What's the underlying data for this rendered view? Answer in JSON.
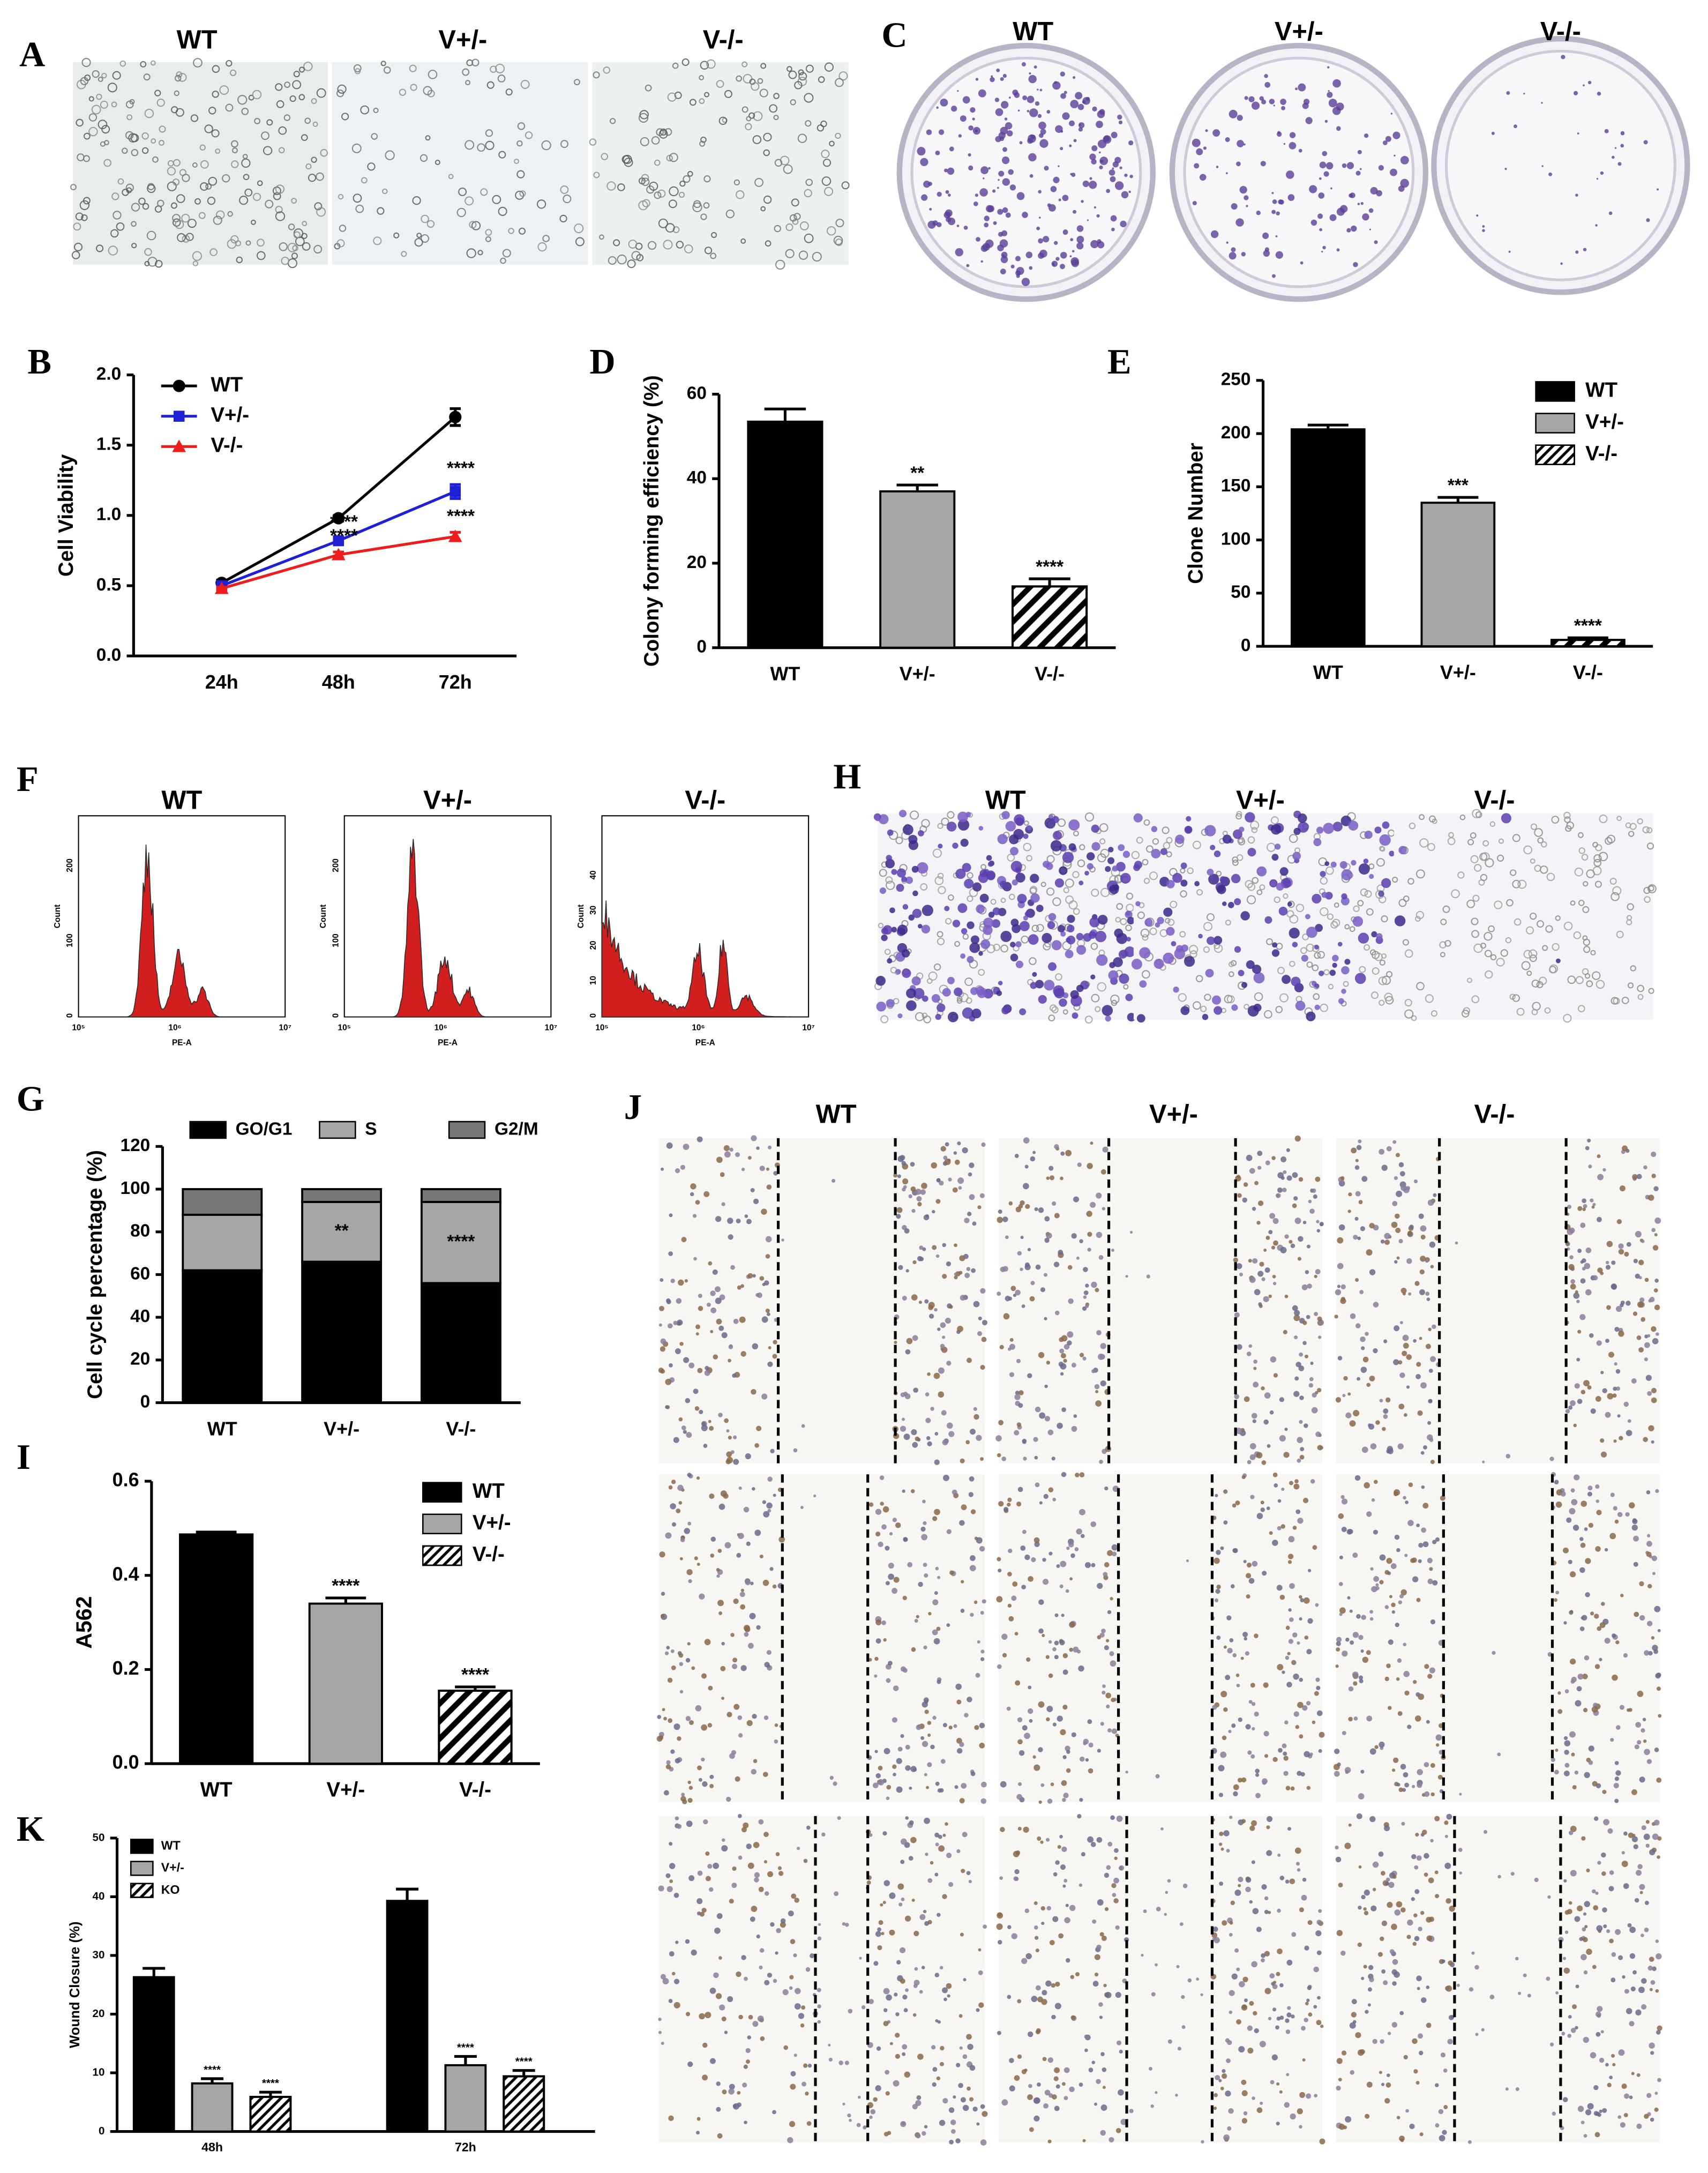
{
  "image_panels": [
    {
      "panel_label": "A",
      "labels": [
        "WT",
        "V+/-",
        "V-/-"
      ]
    },
    {
      "panel_label": "C",
      "labels": [
        "WT",
        "V+/-",
        "V-/-"
      ]
    },
    {
      "panel_label": "F",
      "labels": [
        "WT",
        "V+/-",
        "V-/-"
      ],
      "y_axis_label": "Count",
      "x_axis_label": "PE-A",
      "x_ticks": [
        "10⁵",
        "10⁶",
        "10⁷"
      ],
      "y_ticks": [
        [
          "0",
          "100",
          "200"
        ],
        [
          "0",
          "100",
          "200"
        ],
        [
          "0",
          "10",
          "20",
          "30",
          "40"
        ]
      ]
    },
    {
      "panel_label": "H",
      "labels": [
        "WT",
        "V+/-",
        "V-/-"
      ]
    },
    {
      "panel_label": "J",
      "labels": [
        "WT",
        "V+/-",
        "V-/-"
      ]
    }
  ],
  "chart_data": [
    {
      "type": "line",
      "panel_label": "B",
      "y_label": "Cell Viability",
      "categories": [
        "24h",
        "48h",
        "72h"
      ],
      "ylim": [
        0,
        2
      ],
      "yticks": [
        {
          "value": 0,
          "label": "0.0"
        },
        0.5,
        {
          "value": 1,
          "label": "1.0"
        },
        1.5,
        {
          "value": 2,
          "label": "2.0"
        }
      ],
      "legend": "upper left",
      "series": [
        {
          "name": "WT",
          "color": "#000000",
          "marker": "circle",
          "values": [
            0.52,
            0.98,
            1.7
          ],
          "errors": [
            0.02,
            0.02,
            0.06
          ],
          "annotations": [
            null,
            null,
            null
          ]
        },
        {
          "name": "V+/-",
          "color": "#1f1fd6",
          "marker": "square",
          "values": [
            0.5,
            0.82,
            1.17
          ],
          "errors": [
            0.02,
            0.02,
            0.05
          ],
          "annotations": [
            null,
            "****",
            "****"
          ]
        },
        {
          "name": "V-/-",
          "color": "#ee1c1c",
          "marker": "triangle",
          "values": [
            0.48,
            0.72,
            0.85
          ],
          "errors": [
            0.01,
            0.02,
            0.03
          ],
          "annotations": [
            null,
            "****",
            "****"
          ]
        }
      ]
    },
    {
      "type": "bar",
      "panel_label": "D",
      "y_label": "Colony forming efficiency (%)",
      "categories": [
        "WT",
        "V+/-",
        "V-/-"
      ],
      "values": [
        53.5,
        37,
        14.5
      ],
      "errors": [
        3,
        1.5,
        1.8
      ],
      "annotations": [
        null,
        "**",
        "****"
      ],
      "colors": [
        "#000000",
        "#a6a6a6",
        "#ffffff"
      ],
      "hatch": [
        false,
        false,
        true
      ],
      "ylim": [
        0,
        60
      ],
      "yticks": [
        0,
        20,
        40,
        60
      ]
    },
    {
      "type": "bar",
      "panel_label": "E",
      "y_label": "Clone Number",
      "categories": [
        "WT",
        "V+/-",
        "V-/-"
      ],
      "values": [
        204,
        135,
        6
      ],
      "errors": [
        4,
        5,
        2
      ],
      "annotations": [
        null,
        "***",
        "****"
      ],
      "colors": [
        "#000000",
        "#a6a6a6",
        "#ffffff"
      ],
      "hatch": [
        false,
        false,
        true
      ],
      "ylim": [
        0,
        250
      ],
      "yticks": [
        0,
        50,
        100,
        150,
        200,
        250
      ],
      "legend": "upper right"
    },
    {
      "type": "stacked_bar",
      "panel_label": "G",
      "y_label": "Cell cycle percentage (%)",
      "categories": [
        "WT",
        "V+/-",
        "V-/-"
      ],
      "ylim": [
        0,
        120
      ],
      "yticks": [
        0,
        20,
        40,
        60,
        80,
        100,
        120
      ],
      "legend": "top",
      "series": [
        {
          "name": "GO/G1",
          "color": "#000000",
          "values": [
            62,
            66,
            56
          ],
          "annotations": [
            null,
            null,
            null
          ]
        },
        {
          "name": "S",
          "color": "#a6a6a6",
          "values": [
            26,
            28,
            38
          ],
          "annotations": [
            null,
            "**",
            "****"
          ]
        },
        {
          "name": "G2/M",
          "color": "#777777",
          "values": [
            12,
            6,
            6
          ],
          "annotations": [
            null,
            null,
            null
          ]
        }
      ]
    },
    {
      "type": "bar",
      "panel_label": "I",
      "y_label": "A562",
      "categories": [
        "WT",
        "V+/-",
        "V-/-"
      ],
      "values": [
        0.487,
        0.34,
        0.155
      ],
      "errors": [
        0.005,
        0.012,
        0.008
      ],
      "annotations": [
        null,
        "****",
        "****"
      ],
      "colors": [
        "#000000",
        "#a6a6a6",
        "#ffffff"
      ],
      "hatch": [
        false,
        false,
        true
      ],
      "ylim": [
        0,
        0.6
      ],
      "yticks": [
        {
          "value": 0,
          "label": "0.0"
        },
        0.2,
        0.4,
        0.6
      ],
      "legend": "upper right"
    },
    {
      "type": "grouped_bar",
      "panel_label": "K",
      "y_label": "Wound Closure (%)",
      "categories": [
        "48h",
        "72h"
      ],
      "ylim": [
        0,
        50
      ],
      "yticks": [
        0,
        10,
        20,
        30,
        40,
        50
      ],
      "legend": "upper left",
      "series": [
        {
          "name": "WT",
          "color": "#000000",
          "hatch": false,
          "values": [
            26.3,
            39.3
          ],
          "errors": [
            1.5,
            2
          ],
          "annotations": [
            null,
            null
          ]
        },
        {
          "name": "V+/-",
          "color": "#a6a6a6",
          "hatch": false,
          "values": [
            8.2,
            11.3
          ],
          "errors": [
            0.8,
            1.5
          ],
          "annotations": [
            "****",
            "****"
          ]
        },
        {
          "name": "KO",
          "color": "#ffffff",
          "hatch": true,
          "values": [
            5.9,
            9.4
          ],
          "errors": [
            0.8,
            1
          ],
          "annotations": [
            "****",
            "****"
          ]
        }
      ]
    }
  ]
}
